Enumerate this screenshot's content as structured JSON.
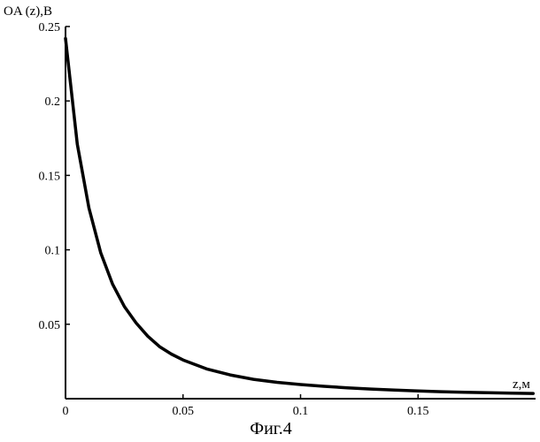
{
  "caption": "Фиг.4",
  "chart_data": {
    "type": "line",
    "title": "",
    "xlabel": "z,м",
    "ylabel": "OA (z),B",
    "xlim": [
      0,
      0.2
    ],
    "ylim": [
      0,
      0.25
    ],
    "x_ticks": [
      0,
      0.05,
      0.1,
      0.15
    ],
    "x_tick_labels": [
      "0",
      "0.05",
      "0.1",
      "0.15"
    ],
    "y_ticks": [
      0.05,
      0.1,
      0.15,
      0.2,
      0.25
    ],
    "y_tick_labels": [
      "0.05",
      "0.1",
      "0.15",
      "0.2",
      "0.25"
    ],
    "grid": false,
    "legend": "none",
    "series": [
      {
        "color": "#000000",
        "x": [
          0,
          0.005,
          0.01,
          0.015,
          0.02,
          0.025,
          0.03,
          0.035,
          0.04,
          0.045,
          0.05,
          0.06,
          0.07,
          0.08,
          0.09,
          0.1,
          0.11,
          0.12,
          0.13,
          0.14,
          0.15,
          0.16,
          0.17,
          0.18,
          0.19,
          0.199
        ],
        "y": [
          0.242,
          0.171,
          0.128,
          0.098,
          0.077,
          0.062,
          0.051,
          0.042,
          0.035,
          0.03,
          0.026,
          0.02,
          0.016,
          0.013,
          0.011,
          0.0095,
          0.0083,
          0.0073,
          0.0065,
          0.0058,
          0.0052,
          0.0047,
          0.0043,
          0.004,
          0.0037,
          0.0035
        ]
      }
    ]
  }
}
